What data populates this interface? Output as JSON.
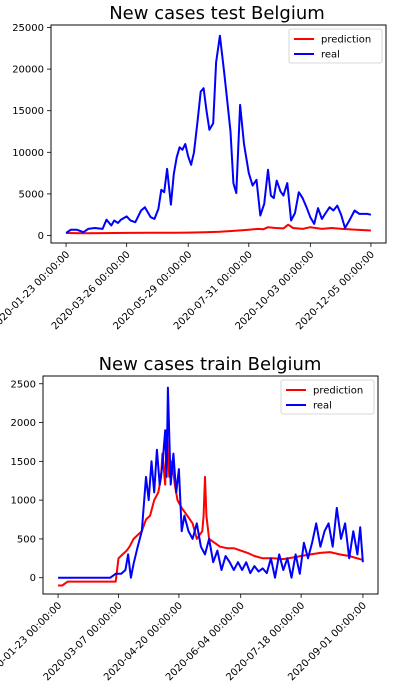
{
  "chart_data": [
    {
      "type": "line",
      "title": "New cases test Belgium",
      "xlabel": "",
      "ylabel": "",
      "x_range": [
        "2020-01-23",
        "2020-12-05"
      ],
      "x_ticks": [
        "2020-01-23 00:00:00",
        "2020-03-26 00:00:00",
        "2020-05-29 00:00:00",
        "2020-07-31 00:00:00",
        "2020-10-03 00:00:00",
        "2020-12-05 00:00:00"
      ],
      "y_ticks": [
        0,
        5000,
        10000,
        15000,
        20000,
        25000
      ],
      "ylim": [
        -900,
        25300
      ],
      "legend_position": "top-right",
      "series": [
        {
          "name": "prediction",
          "color": "#ff0000",
          "points": [
            [
              "2020-01-23",
              300
            ],
            [
              "2020-02-10",
              280
            ],
            [
              "2020-03-01",
              290
            ],
            [
              "2020-03-26",
              310
            ],
            [
              "2020-04-20",
              320
            ],
            [
              "2020-05-15",
              330
            ],
            [
              "2020-05-29",
              350
            ],
            [
              "2020-06-15",
              400
            ],
            [
              "2020-07-01",
              450
            ],
            [
              "2020-07-15",
              550
            ],
            [
              "2020-07-31",
              700
            ],
            [
              "2020-08-10",
              800
            ],
            [
              "2020-08-15",
              750
            ],
            [
              "2020-08-20",
              1000
            ],
            [
              "2020-08-28",
              900
            ],
            [
              "2020-09-05",
              850
            ],
            [
              "2020-09-10",
              1300
            ],
            [
              "2020-09-15",
              900
            ],
            [
              "2020-09-25",
              800
            ],
            [
              "2020-10-03",
              1000
            ],
            [
              "2020-10-15",
              800
            ],
            [
              "2020-10-25",
              900
            ],
            [
              "2020-11-05",
              800
            ],
            [
              "2020-11-20",
              700
            ],
            [
              "2020-12-05",
              600
            ]
          ]
        },
        {
          "name": "real",
          "color": "#0000ff",
          "points": [
            [
              "2020-01-23",
              300
            ],
            [
              "2020-01-28",
              700
            ],
            [
              "2020-02-03",
              700
            ],
            [
              "2020-02-10",
              400
            ],
            [
              "2020-02-15",
              800
            ],
            [
              "2020-02-22",
              900
            ],
            [
              "2020-03-01",
              800
            ],
            [
              "2020-03-05",
              1900
            ],
            [
              "2020-03-10",
              1200
            ],
            [
              "2020-03-13",
              1800
            ],
            [
              "2020-03-17",
              1500
            ],
            [
              "2020-03-20",
              1900
            ],
            [
              "2020-03-26",
              2300
            ],
            [
              "2020-03-30",
              1800
            ],
            [
              "2020-04-04",
              1600
            ],
            [
              "2020-04-10",
              3000
            ],
            [
              "2020-04-14",
              3400
            ],
            [
              "2020-04-20",
              2200
            ],
            [
              "2020-04-24",
              2000
            ],
            [
              "2020-04-28",
              3200
            ],
            [
              "2020-05-01",
              5500
            ],
            [
              "2020-05-04",
              5200
            ],
            [
              "2020-05-07",
              8000
            ],
            [
              "2020-05-11",
              3700
            ],
            [
              "2020-05-14",
              7400
            ],
            [
              "2020-05-17",
              9400
            ],
            [
              "2020-05-20",
              10600
            ],
            [
              "2020-05-23",
              10300
            ],
            [
              "2020-05-26",
              11000
            ],
            [
              "2020-05-29",
              9500
            ],
            [
              "2020-06-01",
              8500
            ],
            [
              "2020-06-04",
              10000
            ],
            [
              "2020-06-08",
              14000
            ],
            [
              "2020-06-11",
              17300
            ],
            [
              "2020-06-14",
              17700
            ],
            [
              "2020-06-17",
              15000
            ],
            [
              "2020-06-20",
              12700
            ],
            [
              "2020-06-24",
              13500
            ],
            [
              "2020-06-27",
              20800
            ],
            [
              "2020-07-01",
              24000
            ],
            [
              "2020-07-05",
              20000
            ],
            [
              "2020-07-08",
              16800
            ],
            [
              "2020-07-12",
              12500
            ],
            [
              "2020-07-15",
              6300
            ],
            [
              "2020-07-18",
              5100
            ],
            [
              "2020-07-22",
              15700
            ],
            [
              "2020-07-26",
              11000
            ],
            [
              "2020-07-31",
              7500
            ],
            [
              "2020-08-04",
              6000
            ],
            [
              "2020-08-08",
              6700
            ],
            [
              "2020-08-12",
              2400
            ],
            [
              "2020-08-16",
              3800
            ],
            [
              "2020-08-20",
              7900
            ],
            [
              "2020-08-23",
              4800
            ],
            [
              "2020-08-26",
              4500
            ],
            [
              "2020-08-29",
              6600
            ],
            [
              "2020-09-02",
              5300
            ],
            [
              "2020-09-05",
              4800
            ],
            [
              "2020-09-09",
              6300
            ],
            [
              "2020-09-13",
              1800
            ],
            [
              "2020-09-17",
              2700
            ],
            [
              "2020-09-21",
              5200
            ],
            [
              "2020-09-25",
              4500
            ],
            [
              "2020-09-29",
              3400
            ],
            [
              "2020-10-03",
              2200
            ],
            [
              "2020-10-07",
              1400
            ],
            [
              "2020-10-11",
              3300
            ],
            [
              "2020-10-15",
              2000
            ],
            [
              "2020-10-19",
              2700
            ],
            [
              "2020-10-23",
              3400
            ],
            [
              "2020-10-27",
              3000
            ],
            [
              "2020-10-31",
              3600
            ],
            [
              "2020-11-04",
              2500
            ],
            [
              "2020-11-08",
              900
            ],
            [
              "2020-11-13",
              1900
            ],
            [
              "2020-11-18",
              3000
            ],
            [
              "2020-11-23",
              2600
            ],
            [
              "2020-12-01",
              2600
            ],
            [
              "2020-12-05",
              2500
            ]
          ]
        }
      ]
    },
    {
      "type": "line",
      "title": "New cases train Belgium",
      "xlabel": "",
      "ylabel": "",
      "x_range": [
        "2020-01-23",
        "2020-09-01"
      ],
      "x_ticks": [
        "2020-01-23 00:00:00",
        "2020-03-07 00:00:00",
        "2020-04-20 00:00:00",
        "2020-06-04 00:00:00",
        "2020-07-18 00:00:00",
        "2020-09-01 00:00:00"
      ],
      "y_ticks": [
        0,
        500,
        1000,
        1500,
        2000,
        2500
      ],
      "ylim": [
        -210,
        2600
      ],
      "legend_position": "top-right",
      "series": [
        {
          "name": "prediction",
          "color": "#ff0000",
          "points": [
            [
              "2020-01-23",
              -100
            ],
            [
              "2020-01-26",
              -100
            ],
            [
              "2020-01-30",
              -50
            ],
            [
              "2020-02-15",
              -50
            ],
            [
              "2020-03-05",
              -50
            ],
            [
              "2020-03-07",
              250
            ],
            [
              "2020-03-10",
              300
            ],
            [
              "2020-03-13",
              350
            ],
            [
              "2020-03-15",
              400
            ],
            [
              "2020-03-18",
              500
            ],
            [
              "2020-03-21",
              550
            ],
            [
              "2020-03-24",
              600
            ],
            [
              "2020-03-27",
              750
            ],
            [
              "2020-03-30",
              800
            ],
            [
              "2020-04-02",
              1000
            ],
            [
              "2020-04-05",
              1100
            ],
            [
              "2020-04-07",
              1300
            ],
            [
              "2020-04-08",
              1600
            ],
            [
              "2020-04-10",
              1200
            ],
            [
              "2020-04-11",
              1900
            ],
            [
              "2020-04-13",
              1300
            ],
            [
              "2020-04-15",
              1500
            ],
            [
              "2020-04-17",
              1200
            ],
            [
              "2020-04-19",
              1000
            ],
            [
              "2020-04-22",
              900
            ],
            [
              "2020-04-26",
              800
            ],
            [
              "2020-04-30",
              700
            ],
            [
              "2020-05-03",
              500
            ],
            [
              "2020-05-05",
              550
            ],
            [
              "2020-05-07",
              600
            ],
            [
              "2020-05-08",
              800
            ],
            [
              "2020-05-09",
              1300
            ],
            [
              "2020-05-10",
              800
            ],
            [
              "2020-05-12",
              500
            ],
            [
              "2020-05-16",
              450
            ],
            [
              "2020-05-20",
              400
            ],
            [
              "2020-05-25",
              380
            ],
            [
              "2020-05-30",
              380
            ],
            [
              "2020-06-04",
              350
            ],
            [
              "2020-06-09",
              320
            ],
            [
              "2020-06-14",
              280
            ],
            [
              "2020-06-20",
              250
            ],
            [
              "2020-06-28",
              250
            ],
            [
              "2020-07-05",
              240
            ],
            [
              "2020-07-12",
              260
            ],
            [
              "2020-07-18",
              280
            ],
            [
              "2020-07-25",
              300
            ],
            [
              "2020-08-01",
              320
            ],
            [
              "2020-08-08",
              330
            ],
            [
              "2020-08-15",
              300
            ],
            [
              "2020-08-22",
              280
            ],
            [
              "2020-09-01",
              230
            ]
          ]
        },
        {
          "name": "real",
          "color": "#0000ff",
          "points": [
            [
              "2020-01-23",
              0
            ],
            [
              "2020-02-10",
              0
            ],
            [
              "2020-03-01",
              0
            ],
            [
              "2020-03-05",
              50
            ],
            [
              "2020-03-09",
              50
            ],
            [
              "2020-03-12",
              100
            ],
            [
              "2020-03-14",
              300
            ],
            [
              "2020-03-16",
              0
            ],
            [
              "2020-03-18",
              180
            ],
            [
              "2020-03-21",
              400
            ],
            [
              "2020-03-24",
              600
            ],
            [
              "2020-03-27",
              1300
            ],
            [
              "2020-03-29",
              1000
            ],
            [
              "2020-03-31",
              1500
            ],
            [
              "2020-04-02",
              1100
            ],
            [
              "2020-04-04",
              1650
            ],
            [
              "2020-04-06",
              1200
            ],
            [
              "2020-04-08",
              1450
            ],
            [
              "2020-04-10",
              1900
            ],
            [
              "2020-04-11",
              1300
            ],
            [
              "2020-04-12",
              2450
            ],
            [
              "2020-04-14",
              1200
            ],
            [
              "2020-04-16",
              1600
            ],
            [
              "2020-04-18",
              1100
            ],
            [
              "2020-04-20",
              1400
            ],
            [
              "2020-04-22",
              600
            ],
            [
              "2020-04-24",
              800
            ],
            [
              "2020-04-27",
              600
            ],
            [
              "2020-04-30",
              500
            ],
            [
              "2020-05-03",
              700
            ],
            [
              "2020-05-06",
              400
            ],
            [
              "2020-05-09",
              300
            ],
            [
              "2020-05-12",
              500
            ],
            [
              "2020-05-15",
              200
            ],
            [
              "2020-05-18",
              350
            ],
            [
              "2020-05-21",
              100
            ],
            [
              "2020-05-24",
              280
            ],
            [
              "2020-05-27",
              200
            ],
            [
              "2020-05-30",
              100
            ],
            [
              "2020-06-02",
              200
            ],
            [
              "2020-06-05",
              100
            ],
            [
              "2020-06-08",
              200
            ],
            [
              "2020-06-11",
              60
            ],
            [
              "2020-06-14",
              150
            ],
            [
              "2020-06-17",
              80
            ],
            [
              "2020-06-20",
              120
            ],
            [
              "2020-06-23",
              60
            ],
            [
              "2020-06-26",
              250
            ],
            [
              "2020-06-29",
              0
            ],
            [
              "2020-07-02",
              300
            ],
            [
              "2020-07-05",
              100
            ],
            [
              "2020-07-08",
              250
            ],
            [
              "2020-07-11",
              0
            ],
            [
              "2020-07-14",
              300
            ],
            [
              "2020-07-17",
              50
            ],
            [
              "2020-07-20",
              450
            ],
            [
              "2020-07-23",
              250
            ],
            [
              "2020-07-26",
              450
            ],
            [
              "2020-07-29",
              700
            ],
            [
              "2020-08-01",
              400
            ],
            [
              "2020-08-04",
              600
            ],
            [
              "2020-08-07",
              700
            ],
            [
              "2020-08-10",
              400
            ],
            [
              "2020-08-13",
              900
            ],
            [
              "2020-08-16",
              500
            ],
            [
              "2020-08-19",
              700
            ],
            [
              "2020-08-22",
              250
            ],
            [
              "2020-08-25",
              600
            ],
            [
              "2020-08-28",
              300
            ],
            [
              "2020-08-30",
              650
            ],
            [
              "2020-09-01",
              200
            ]
          ]
        }
      ]
    }
  ]
}
